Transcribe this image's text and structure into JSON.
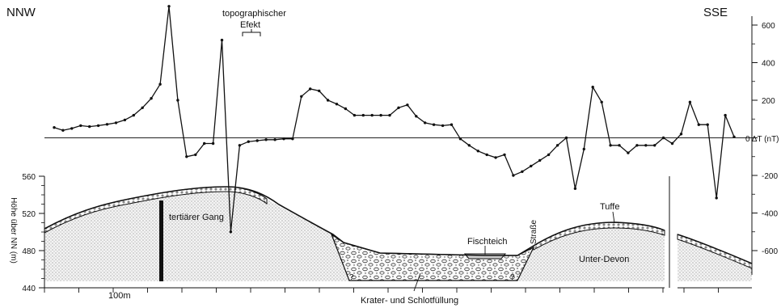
{
  "labels": {
    "nnw": "NNW",
    "sse": "SSE",
    "topo_line1": "topographischer",
    "topo_line2": "Efekt",
    "tertiaer": "tertiärer Gang",
    "tuffe": "Tuffe",
    "fischteich": "Fischteich",
    "strasse": "Straße",
    "unterdevon": "Unter-Devon",
    "krater": "Krater- und Schlotfüllung",
    "scale": "100m",
    "left_axis_title": "Höhe über NN (m)",
    "right_axis_title": "0 ΔT (nT)",
    "q1": "?",
    "q2": "?"
  },
  "chart_data": {
    "type": "line",
    "series": [
      {
        "values_nT": [
          55,
          40,
          50,
          65,
          60,
          65,
          72,
          80,
          95,
          120,
          160,
          210,
          285,
          700,
          200,
          -100,
          -90,
          -30,
          -30,
          520,
          -500,
          -40,
          -20,
          -15,
          -10,
          -10,
          -5,
          -5,
          220,
          260,
          250,
          200,
          180,
          155,
          120,
          120,
          120,
          120,
          120,
          160,
          175,
          115,
          80,
          70,
          65,
          70,
          -5,
          -40,
          -70,
          -90,
          -105,
          -90,
          -200,
          -180,
          -150,
          -120,
          -90,
          -40,
          0,
          -270,
          -60,
          270,
          190,
          -40,
          -40,
          -80,
          -40,
          -40,
          -40,
          0,
          -30,
          20,
          190,
          70,
          70,
          -320,
          120,
          5
        ]
      }
    ],
    "right_axis": {
      "ticks": [
        600,
        400,
        200,
        0,
        -200,
        -400,
        -600
      ],
      "range": [
        -650,
        700
      ],
      "unit": "nT"
    },
    "left_axis": {
      "ticks": [
        560,
        520,
        480,
        440
      ],
      "range": [
        440,
        560
      ],
      "unit": "m"
    },
    "scale_bar": "100m"
  }
}
